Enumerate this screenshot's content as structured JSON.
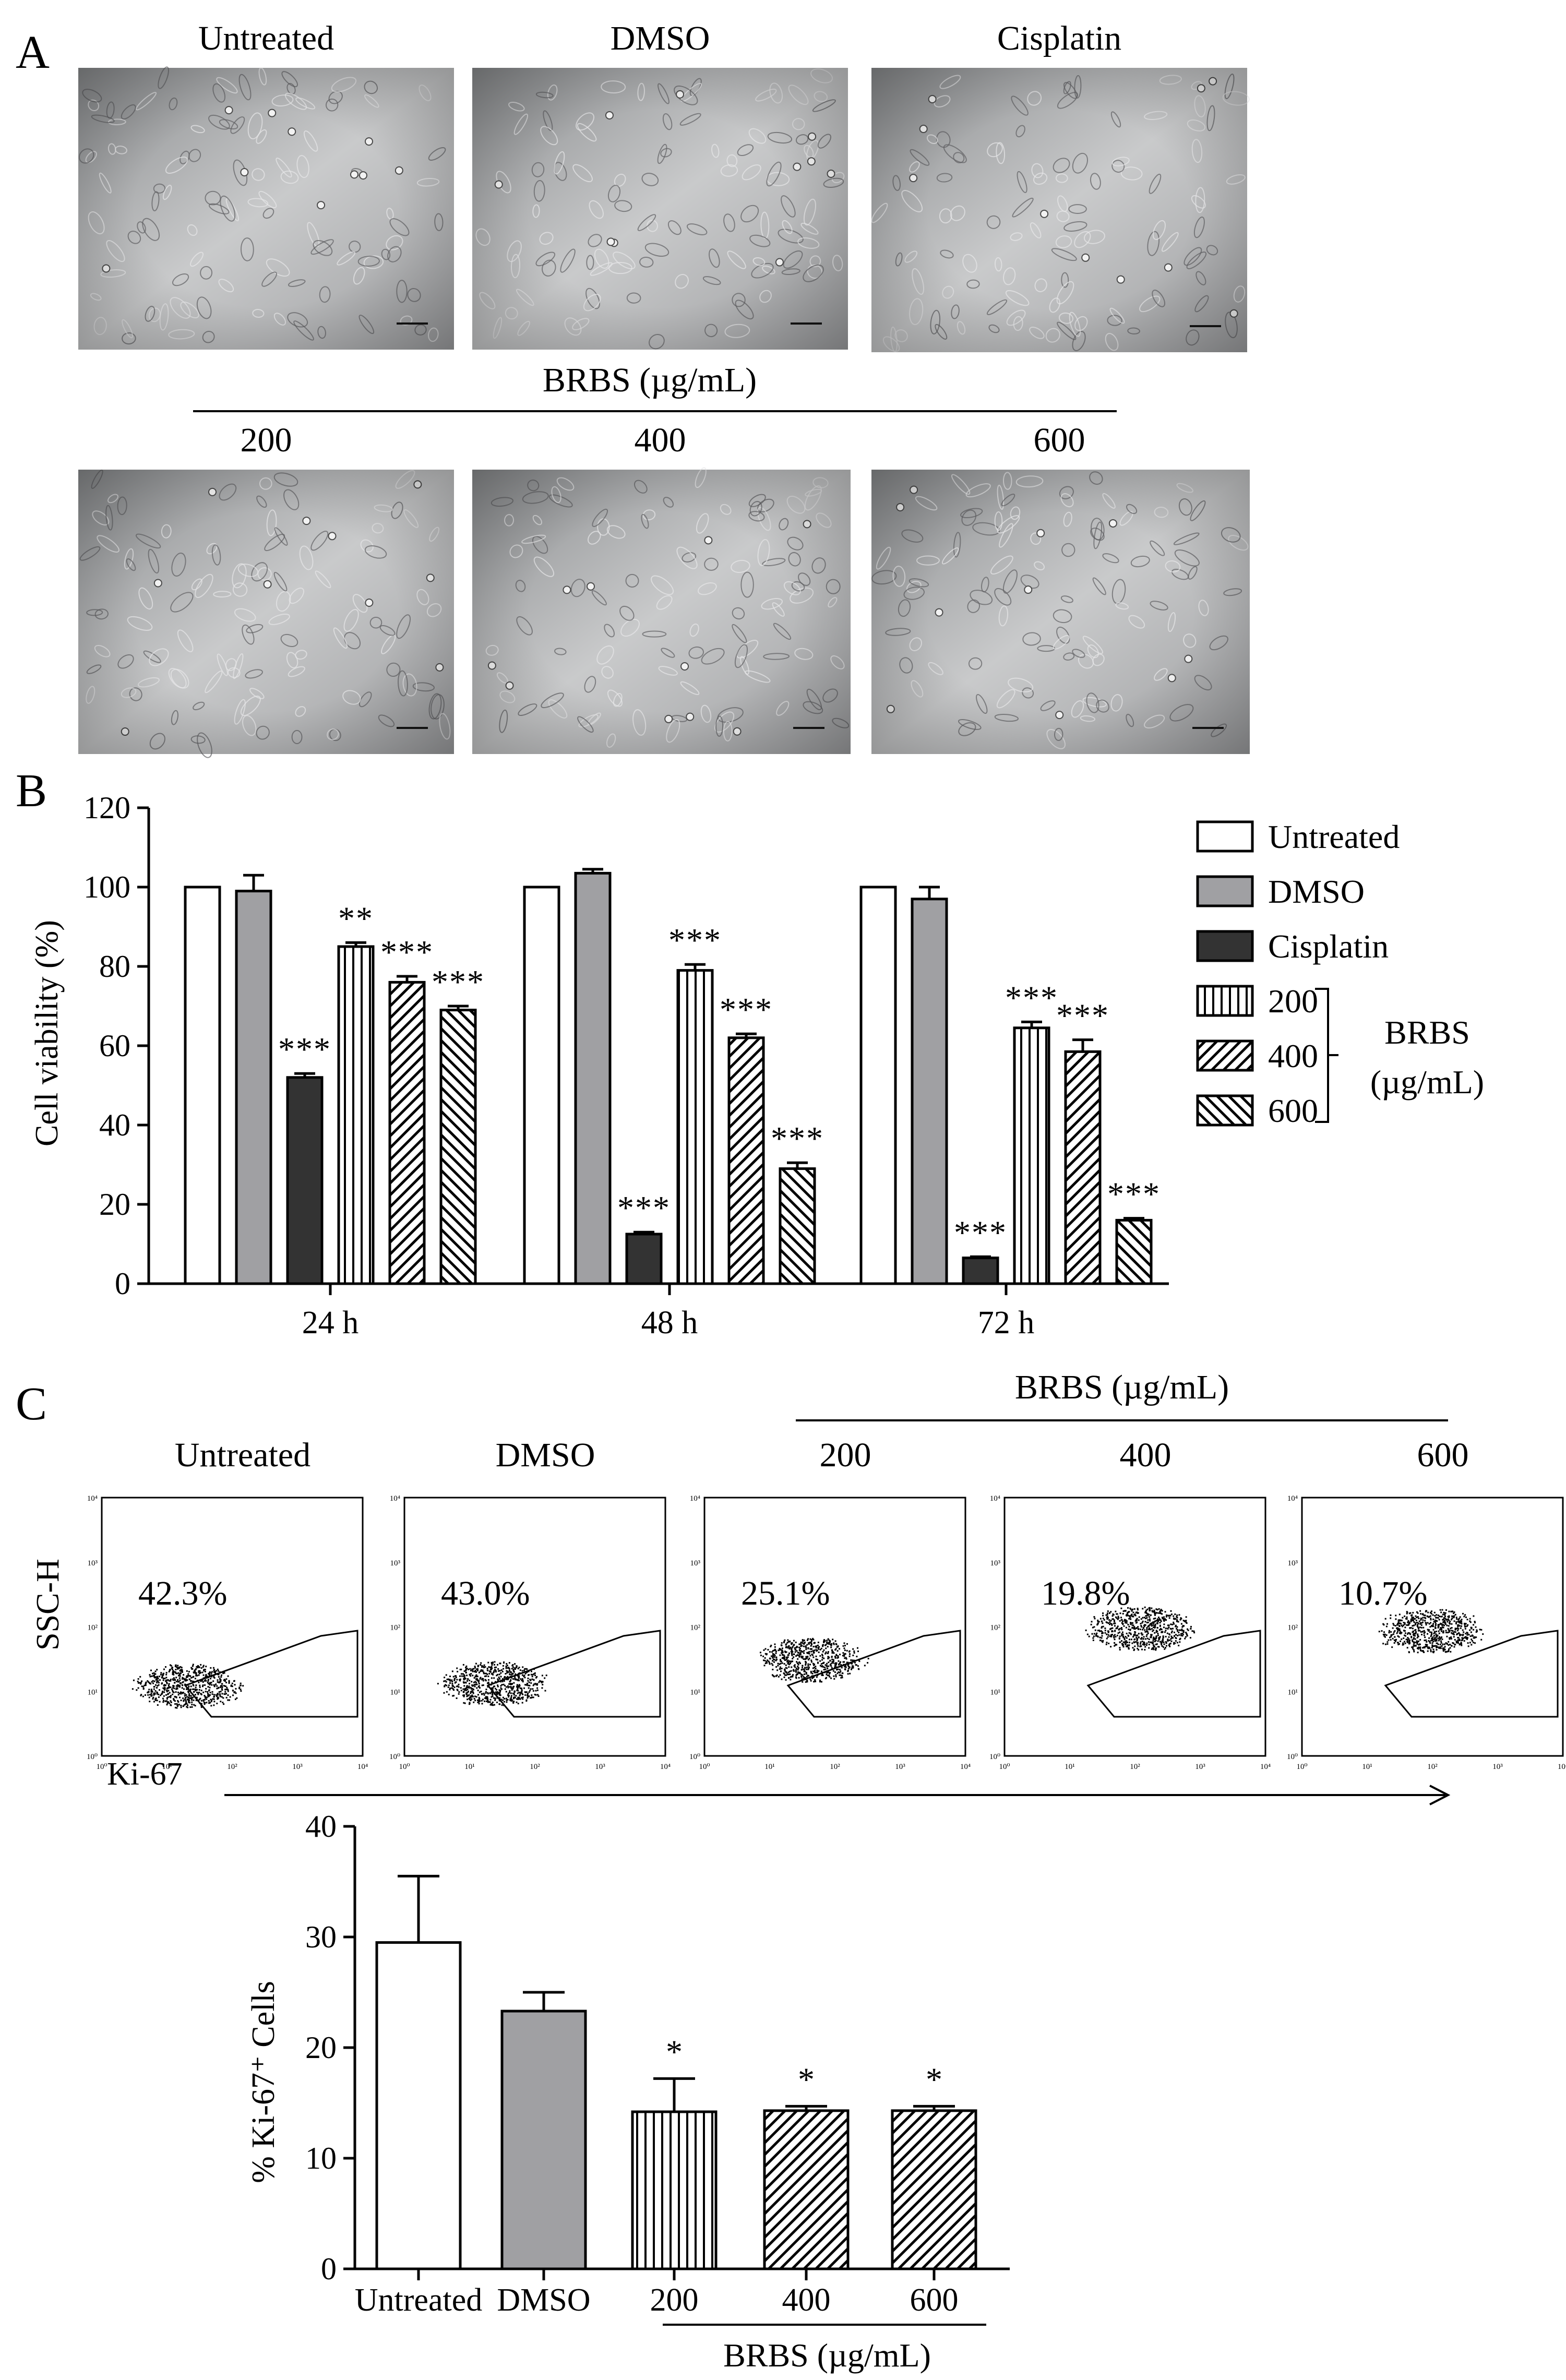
{
  "panel_a": {
    "letter": "A",
    "top_labels": [
      "Untreated",
      "DMSO",
      "Cisplatin"
    ],
    "group_label": "BRBS (µg/mL)",
    "bottom_labels": [
      "200",
      "400",
      "600"
    ]
  },
  "panel_c": {
    "letter": "C",
    "group_label": "BRBS (µg/mL)",
    "flow_labels": [
      "Untreated",
      "DMSO",
      "200",
      "400",
      "600"
    ],
    "percentages": [
      "42.3%",
      "43.0%",
      "25.1%",
      "19.8%",
      "10.7%"
    ],
    "y_axis_label": "SSC-H",
    "x_axis_label": "Ki-67",
    "tick_labels": [
      "10⁰",
      "10¹",
      "10²",
      "10³",
      "10⁴"
    ]
  },
  "chart_data": [
    {
      "type": "bar",
      "panel": "B",
      "letter": "B",
      "categories": [
        "24 h",
        "48 h",
        "72 h"
      ],
      "ylabel": "Cell viability (%)",
      "ylim": [
        0,
        120
      ],
      "yticks": [
        "0",
        "20",
        "40",
        "60",
        "80",
        "100",
        "120"
      ],
      "legend_group_label": [
        "BRBS",
        "(µg/mL)"
      ],
      "series": [
        {
          "name": "Untreated",
          "values": [
            100,
            100,
            100
          ],
          "errors": [
            0,
            0,
            0
          ],
          "sig": [
            "",
            "",
            ""
          ],
          "pattern": "white"
        },
        {
          "name": "DMSO",
          "values": [
            99,
            103.5,
            97
          ],
          "errors": [
            4,
            1,
            3
          ],
          "sig": [
            "",
            "",
            ""
          ],
          "pattern": "gray"
        },
        {
          "name": "Cisplatin",
          "values": [
            52,
            12.5,
            6.5
          ],
          "errors": [
            1,
            0.5,
            0.3
          ],
          "sig": [
            "***",
            "***",
            "***"
          ],
          "pattern": "dark"
        },
        {
          "name": "200",
          "values": [
            85,
            79,
            64.5
          ],
          "errors": [
            1,
            1.5,
            1.5
          ],
          "sig": [
            "**",
            "***",
            "***"
          ],
          "pattern": "vlines"
        },
        {
          "name": "400",
          "values": [
            76,
            62,
            58.5
          ],
          "errors": [
            1.5,
            1,
            3
          ],
          "sig": [
            "***",
            "***",
            "***"
          ],
          "pattern": "diag"
        },
        {
          "name": "600",
          "values": [
            69,
            29,
            16
          ],
          "errors": [
            1,
            1.5,
            0.5
          ],
          "sig": [
            "***",
            "***",
            "***"
          ],
          "pattern": "bdiag"
        }
      ]
    },
    {
      "type": "bar",
      "panel": "C",
      "categories": [
        "Untreated",
        "DMSO",
        "200",
        "400",
        "600"
      ],
      "ylabel": "% Ki-67⁺ Cells",
      "ylim": [
        0,
        40
      ],
      "yticks": [
        "0",
        "10",
        "20",
        "30",
        "40"
      ],
      "group_label": "BRBS (µg/mL)",
      "values": [
        29.5,
        23.3,
        14.2,
        14.3,
        14.3
      ],
      "errors": [
        6,
        1.7,
        3,
        0.4,
        0.4
      ],
      "sig": [
        "",
        "",
        "*",
        "*",
        "*"
      ],
      "patterns": [
        "white",
        "gray",
        "vlines",
        "diag",
        "diag"
      ]
    }
  ]
}
